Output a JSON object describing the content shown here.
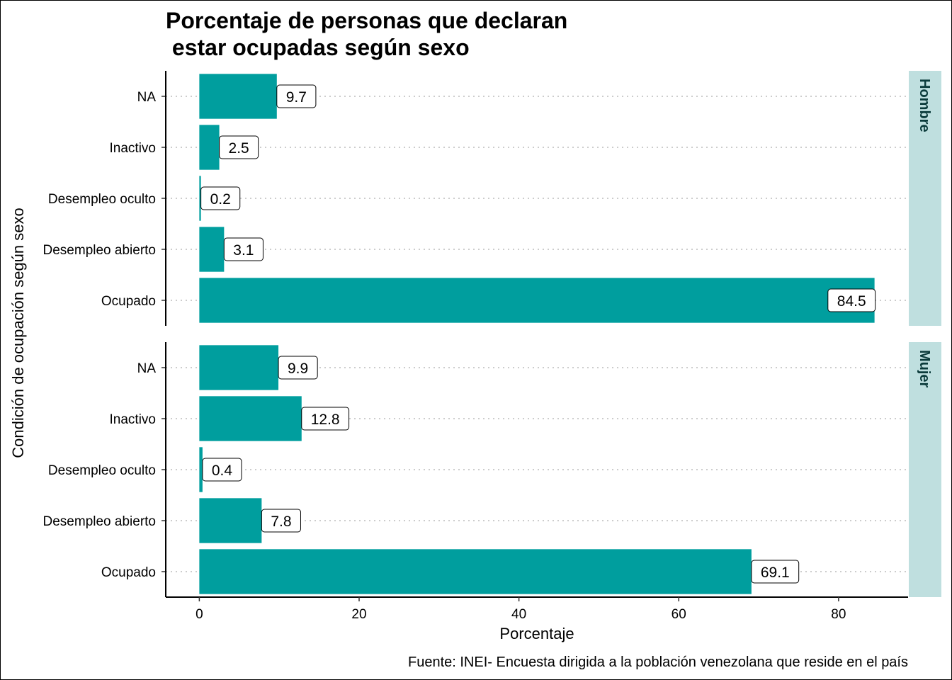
{
  "title_line1": "Porcentaje de personas que declaran",
  "title_line2": " estar ocupadas según sexo",
  "caption": "Fuente: INEI- Encuesta dirigida a la población venezolana que reside en el país",
  "colors": {
    "bar": "#009E9E",
    "strip": "#BFDFDF",
    "grid": "#BBBBBB"
  },
  "chart_data": {
    "type": "bar",
    "orientation": "horizontal",
    "xlabel": "Porcentaje",
    "ylabel": "Condición de ocupación según sexo",
    "xlim": [
      -4.2,
      88.7
    ],
    "xticks": [
      0,
      20,
      40,
      60,
      80
    ],
    "xtick_labels": [
      "0",
      "20",
      "40",
      "60",
      "80"
    ],
    "categories": [
      "NA",
      "Inactivo",
      "Desempleo oculto",
      "Desempleo abierto",
      "Ocupado"
    ],
    "facets": [
      {
        "name": "Hombre",
        "values": [
          9.7,
          2.5,
          0.2,
          3.1,
          84.5
        ],
        "labels": [
          "9.7",
          "2.5",
          "0.2",
          "3.1",
          "84.5"
        ]
      },
      {
        "name": "Mujer",
        "values": [
          9.9,
          12.8,
          0.4,
          7.8,
          69.1
        ],
        "labels": [
          "9.9",
          "12.8",
          "0.4",
          "7.8",
          "69.1"
        ]
      }
    ],
    "grid": "horizontal dotted"
  }
}
